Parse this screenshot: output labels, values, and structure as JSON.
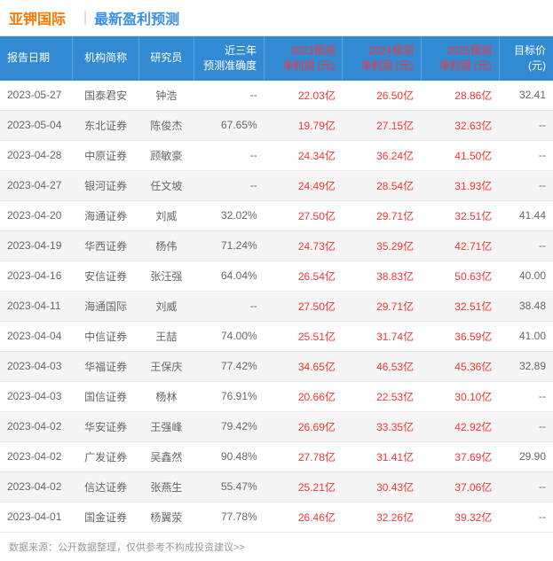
{
  "header": {
    "stock_name": "亚钾国际",
    "section_title": "最新盈利预测"
  },
  "table": {
    "columns": [
      "报告日期",
      "机构简称",
      "研究员",
      "近三年\n预测准确度",
      "2023预测\n净利润 (元)",
      "2024预测\n净利润 (元)",
      "2025预测\n净利润 (元)",
      "目标价\n(元)"
    ],
    "column_classes": [
      "col-date",
      "col-org",
      "col-analyst",
      "col-accuracy",
      "col-profit",
      "col-profit",
      "col-profit",
      "col-target"
    ],
    "rows": [
      [
        "2023-05-27",
        "国泰君安",
        "钟浩",
        "--",
        "22.03亿",
        "26.50亿",
        "28.86亿",
        "32.41"
      ],
      [
        "2023-05-04",
        "东北证券",
        "陈俊杰",
        "67.65%",
        "19.79亿",
        "27.15亿",
        "32.63亿",
        "--"
      ],
      [
        "2023-04-28",
        "中原证券",
        "顾敏豪",
        "--",
        "24.34亿",
        "36.24亿",
        "41.50亿",
        "--"
      ],
      [
        "2023-04-27",
        "银河证券",
        "任文坡",
        "--",
        "24.49亿",
        "28.54亿",
        "31.93亿",
        "--"
      ],
      [
        "2023-04-20",
        "海通证券",
        "刘威",
        "32.02%",
        "27.50亿",
        "29.71亿",
        "32.51亿",
        "41.44"
      ],
      [
        "2023-04-19",
        "华西证券",
        "杨伟",
        "71.24%",
        "24.73亿",
        "35.29亿",
        "42.71亿",
        "--"
      ],
      [
        "2023-04-16",
        "安信证券",
        "张汪强",
        "64.04%",
        "26.54亿",
        "38.83亿",
        "50.63亿",
        "40.00"
      ],
      [
        "2023-04-11",
        "海通国际",
        "刘威",
        "--",
        "27.50亿",
        "29.71亿",
        "32.51亿",
        "38.48"
      ],
      [
        "2023-04-04",
        "中信证券",
        "王喆",
        "74.00%",
        "25.51亿",
        "31.74亿",
        "36.59亿",
        "41.00"
      ],
      [
        "2023-04-03",
        "华福证券",
        "王保庆",
        "77.42%",
        "34.65亿",
        "46.53亿",
        "45.36亿",
        "32.89"
      ],
      [
        "2023-04-03",
        "国信证券",
        "杨林",
        "76.91%",
        "20.66亿",
        "22.53亿",
        "30.10亿",
        "--"
      ],
      [
        "2023-04-02",
        "华安证券",
        "王强峰",
        "79.42%",
        "26.69亿",
        "33.35亿",
        "42.92亿",
        "--"
      ],
      [
        "2023-04-02",
        "广发证券",
        "吴鑫然",
        "90.48%",
        "27.78亿",
        "31.41亿",
        "37.69亿",
        "29.90"
      ],
      [
        "2023-04-02",
        "信达证券",
        "张燕生",
        "55.47%",
        "25.21亿",
        "30.43亿",
        "37.06亿",
        "--"
      ],
      [
        "2023-04-01",
        "国金证券",
        "杨翼荥",
        "77.78%",
        "26.46亿",
        "32.26亿",
        "39.32亿",
        "--"
      ]
    ],
    "profit_color": "#ff3333",
    "header_bg": "#328ad2",
    "header_fg": "#ffffff",
    "row_alt_bg": "#f5f5f5",
    "border_color": "#e8e8e8"
  },
  "footer": {
    "text": "数据来源：公开数据整理，仅供参考不构成投资建议>>"
  }
}
